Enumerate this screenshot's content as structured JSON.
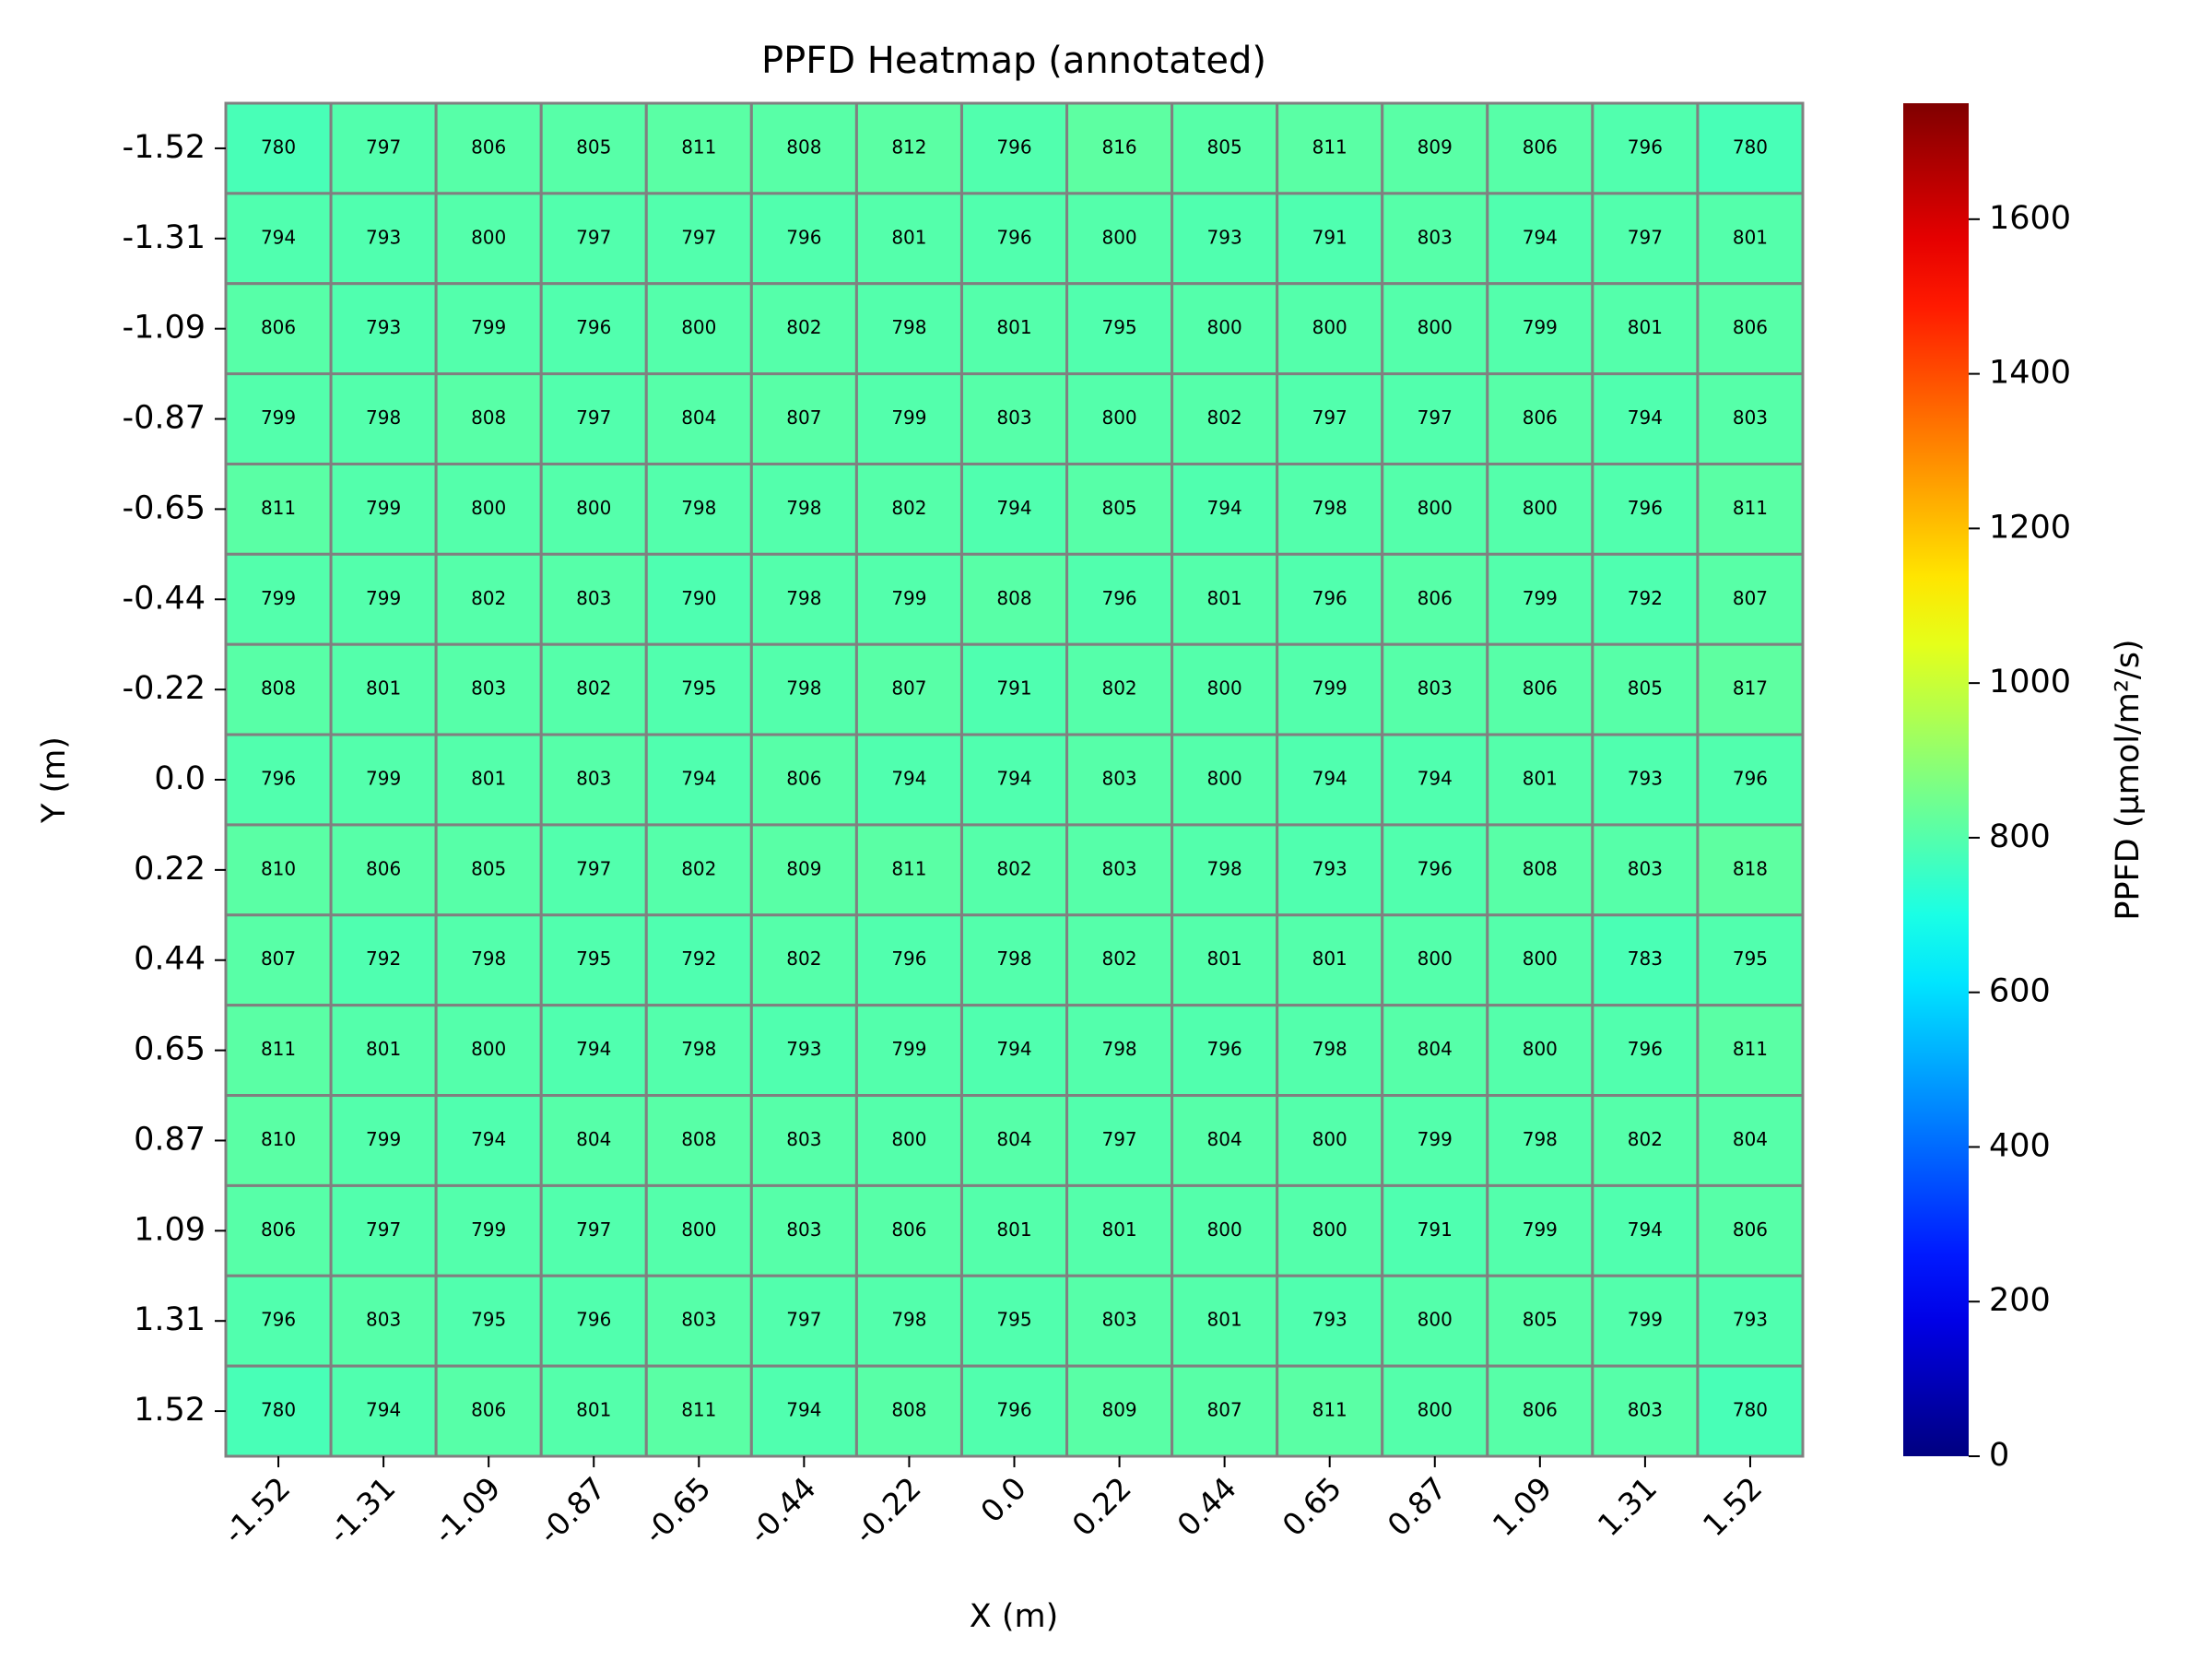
{
  "chart_data": {
    "type": "heatmap",
    "title": "PPFD Heatmap (annotated)",
    "x_label": "X (m)",
    "y_label": "Y (m)",
    "colorbar_label": "PPFD (µmol/m²/s)",
    "colormap": "jet",
    "clim": [
      0,
      1750
    ],
    "cticks": [
      0,
      200,
      400,
      600,
      800,
      1000,
      1200,
      1400,
      1600
    ],
    "x_categories": [
      "-1.52",
      "-1.31",
      "-1.09",
      "-0.87",
      "-0.65",
      "-0.44",
      "-0.22",
      "0.0",
      "0.22",
      "0.44",
      "0.65",
      "0.87",
      "1.09",
      "1.31",
      "1.52"
    ],
    "y_categories": [
      "-1.52",
      "-1.31",
      "-1.09",
      "-0.87",
      "-0.65",
      "-0.44",
      "-0.22",
      "0.0",
      "0.22",
      "0.44",
      "0.65",
      "0.87",
      "1.09",
      "1.31",
      "1.52"
    ],
    "values": [
      [
        780,
        797,
        806,
        805,
        811,
        808,
        812,
        796,
        816,
        805,
        811,
        809,
        806,
        796,
        780
      ],
      [
        794,
        793,
        800,
        797,
        797,
        796,
        801,
        796,
        800,
        793,
        791,
        803,
        794,
        797,
        801
      ],
      [
        806,
        793,
        799,
        796,
        800,
        802,
        798,
        801,
        795,
        800,
        800,
        800,
        799,
        801,
        806
      ],
      [
        799,
        798,
        808,
        797,
        804,
        807,
        799,
        803,
        800,
        802,
        797,
        797,
        806,
        794,
        803
      ],
      [
        811,
        799,
        800,
        800,
        798,
        798,
        802,
        794,
        805,
        794,
        798,
        800,
        800,
        796,
        811
      ],
      [
        799,
        799,
        802,
        803,
        790,
        798,
        799,
        808,
        796,
        801,
        796,
        806,
        799,
        792,
        807
      ],
      [
        808,
        801,
        803,
        802,
        795,
        798,
        807,
        791,
        802,
        800,
        799,
        803,
        806,
        805,
        817
      ],
      [
        796,
        799,
        801,
        803,
        794,
        806,
        794,
        794,
        803,
        800,
        794,
        794,
        801,
        793,
        796
      ],
      [
        810,
        806,
        805,
        797,
        802,
        809,
        811,
        802,
        803,
        798,
        793,
        796,
        808,
        803,
        818
      ],
      [
        807,
        792,
        798,
        795,
        792,
        802,
        796,
        798,
        802,
        801,
        801,
        800,
        800,
        783,
        795
      ],
      [
        811,
        801,
        800,
        794,
        798,
        793,
        799,
        794,
        798,
        796,
        798,
        804,
        800,
        796,
        811
      ],
      [
        810,
        799,
        794,
        804,
        808,
        803,
        800,
        804,
        797,
        804,
        800,
        799,
        798,
        802,
        804
      ],
      [
        806,
        797,
        799,
        797,
        800,
        803,
        806,
        801,
        801,
        800,
        800,
        791,
        799,
        794,
        806
      ],
      [
        796,
        803,
        795,
        796,
        803,
        797,
        798,
        795,
        803,
        801,
        793,
        800,
        805,
        799,
        793
      ],
      [
        780,
        794,
        806,
        801,
        811,
        794,
        808,
        796,
        809,
        807,
        811,
        800,
        806,
        803,
        780
      ]
    ]
  }
}
